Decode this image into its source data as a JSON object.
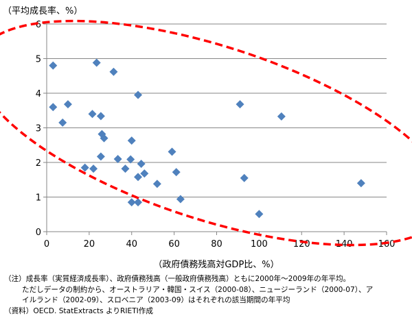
{
  "chart_data": {
    "type": "scatter",
    "title": "",
    "xlabel": "（政府債務残高対GDP比、%）",
    "ylabel": "（平均成長率、%）",
    "xlim": [
      0,
      160
    ],
    "ylim": [
      0,
      6
    ],
    "x_ticks": [
      "0",
      "20",
      "40",
      "60",
      "80",
      "100",
      "120",
      "140",
      "160"
    ],
    "y_ticks": [
      "0",
      "1",
      "2",
      "3",
      "4",
      "5",
      "6"
    ],
    "grid": {
      "horizontal": true,
      "vertical": false
    },
    "marker": "diamond",
    "marker_color": "#4F81BD",
    "annotation": {
      "shape": "dashed-ellipse",
      "color": "#FF0000",
      "center": [
        78,
        2.85
      ],
      "radius": [
        116,
        2.5
      ],
      "rotation_deg": 18
    },
    "points": [
      [
        3,
        4.8
      ],
      [
        23.5,
        4.88
      ],
      [
        31.5,
        4.62
      ],
      [
        43,
        3.95
      ],
      [
        3,
        3.6
      ],
      [
        10,
        3.68
      ],
      [
        7.5,
        3.15
      ],
      [
        21.5,
        3.4
      ],
      [
        25.5,
        3.34
      ],
      [
        26,
        2.82
      ],
      [
        27,
        2.7
      ],
      [
        40,
        2.63
      ],
      [
        25.5,
        2.17
      ],
      [
        18,
        1.85
      ],
      [
        22,
        1.82
      ],
      [
        33.5,
        2.1
      ],
      [
        37,
        1.82
      ],
      [
        39.5,
        2.09
      ],
      [
        44.5,
        1.96
      ],
      [
        43,
        1.58
      ],
      [
        46,
        1.68
      ],
      [
        52,
        1.38
      ],
      [
        40,
        0.85
      ],
      [
        43,
        0.85
      ],
      [
        63,
        0.94
      ],
      [
        59,
        2.31
      ],
      [
        61,
        1.72
      ],
      [
        91,
        3.68
      ],
      [
        110.5,
        3.33
      ],
      [
        93,
        1.55
      ],
      [
        100,
        0.51
      ],
      [
        148,
        1.4
      ]
    ]
  },
  "notes": {
    "line1": "（注）成長率（実質経済成長率）、政府債務残高（一般政府債務残高）ともに2000年～2009年の年平均。",
    "line2": "ただしデータの制約から、オーストラリア・韓国・スイス（2000-08）、ニュージーランド（2000-07）、ア",
    "line3": "イルランド（2002-09）、スロベニア（2003-09）はそれぞれの該当期間の年平均",
    "line4": "（資料）OECD. StatExtracts よりRIETI作成"
  }
}
